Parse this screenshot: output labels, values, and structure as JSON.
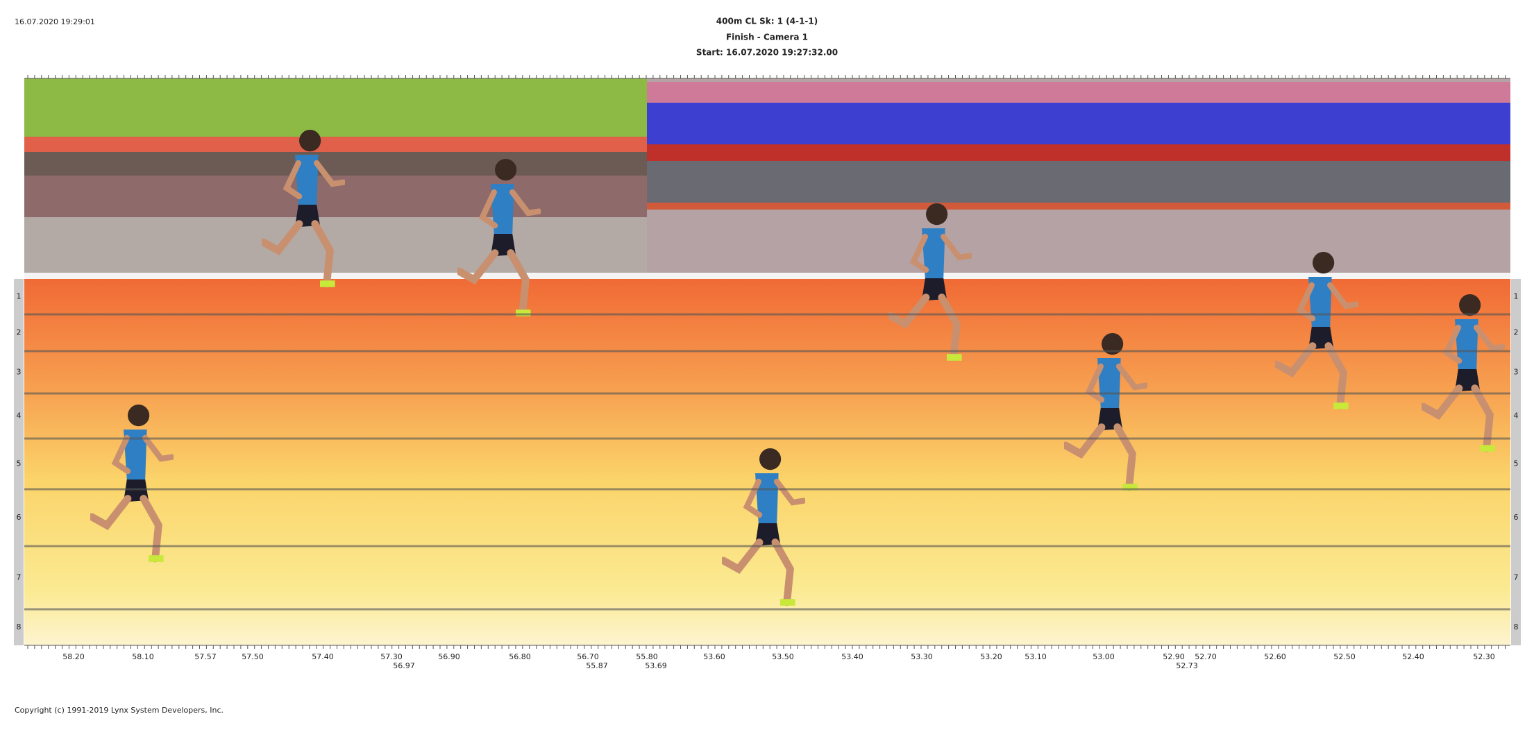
{
  "header": {
    "timestamp": "16.07.2020 19:29:01",
    "title": "400m CL   Sk: 1 (4-1-1)",
    "subtitle": "Finish - Camera 1",
    "start": "Start: 16.07.2020 19:27:32.00"
  },
  "lanes": [
    "1",
    "2",
    "3",
    "4",
    "5",
    "6",
    "7",
    "8"
  ],
  "time_labels": [
    "58.20",
    "58.10",
    "57.57",
    "57.50",
    "57.40",
    "57.30",
    "56.90",
    "56.80",
    "56.70",
    "55.80",
    "53.60",
    "53.50",
    "53.40",
    "53.30",
    "53.20",
    "53.10",
    "53.00",
    "52.90",
    "52.70",
    "52.60",
    "52.50",
    "52.40",
    "52.30"
  ],
  "time_labels_lower": [
    "56.97",
    "55.87",
    "53.69",
    "52.73"
  ],
  "copyright": "Copyright (c) 1991-2019 Lynx System Developers, Inc."
}
